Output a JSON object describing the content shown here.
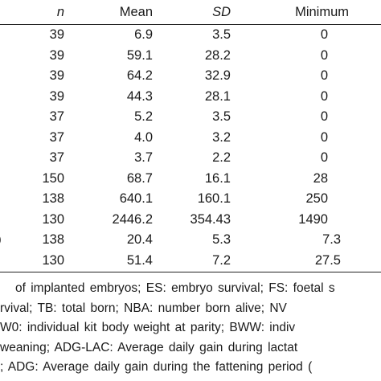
{
  "table": {
    "headers": {
      "n": "n",
      "mean": "Mean",
      "sd": "SD",
      "minimum": "Minimum"
    },
    "rows": [
      {
        "label": "",
        "n": "39",
        "mean": "6.9",
        "sd": "3.5",
        "minimum": "0"
      },
      {
        "label": "",
        "n": "39",
        "mean": "59.1",
        "sd": "28.2",
        "minimum": "0"
      },
      {
        "label": "",
        "n": "39",
        "mean": "64.2",
        "sd": "32.9",
        "minimum": "0"
      },
      {
        "label": "",
        "n": "39",
        "mean": "44.3",
        "sd": "28.1",
        "minimum": "0"
      },
      {
        "label": "",
        "n": "37",
        "mean": "5.2",
        "sd": "3.5",
        "minimum": "0"
      },
      {
        "label": "",
        "n": "37",
        "mean": "4.0",
        "sd": "3.2",
        "minimum": "0"
      },
      {
        "label": "",
        "n": "37",
        "mean": "3.7",
        "sd": "2.2",
        "minimum": "0"
      },
      {
        "label": "",
        "n": "150",
        "mean": "68.7",
        "sd": "16.1",
        "minimum": "28"
      },
      {
        "label": "",
        "n": "138",
        "mean": "640.1",
        "sd": "160.1",
        "minimum": "250"
      },
      {
        "label": "",
        "n": "130",
        "mean": "2446.2",
        "sd": "354.43",
        "minimum": "1490"
      },
      {
        "label": ")",
        "n": "138",
        "mean": "20.4",
        "sd": "5.3",
        "minimum": "7.3"
      },
      {
        "label": "",
        "n": "130",
        "mean": "51.4",
        "sd": "7.2",
        "minimum": "27.5"
      }
    ]
  },
  "footnotes": [
    "of implanted embryos; ES: embryo survival; FS: foetal s",
    "rvival; TB: total born; NBA: number born alive; NV",
    "W0: individual kit body weight at parity; BWW: indiv",
    "weaning; ADG-LAC: Average daily gain during lactat",
    "; ADG: Average daily gain during the fattening period ("
  ]
}
